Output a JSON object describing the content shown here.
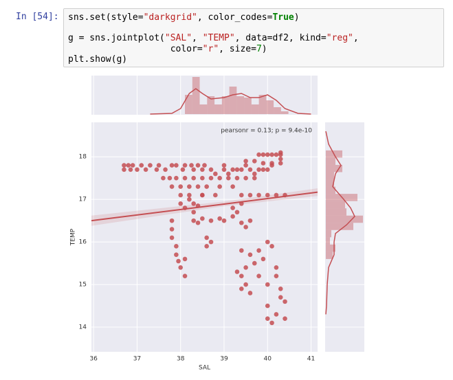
{
  "prompt": "In [54]:",
  "code": [
    [
      "sns.set(style=",
      "\"darkgrid\"",
      ", color_codes=",
      "True",
      ")"
    ],
    [
      "g = sns.jointplot(",
      "\"SAL\"",
      ", ",
      "\"TEMP\"",
      ", data=df2, kind=",
      "\"reg\"",
      ","
    ],
    [
      "                   color=",
      "\"r\"",
      ", size=",
      "7",
      ")"
    ],
    [
      "plt.show(g)"
    ]
  ],
  "chart_data": {
    "type": "scatter",
    "x_label": "SAL",
    "y_label": "TEMP",
    "annotation": "pearsonr = 0.13; p = 9.4e-10",
    "color": "#c44e52",
    "grid": true,
    "xlim": [
      35.95,
      41.15
    ],
    "ylim": [
      13.42,
      18.81
    ],
    "xticks": [
      36,
      37,
      38,
      39,
      40,
      41
    ],
    "yticks": [
      14,
      15,
      16,
      17,
      18
    ],
    "x": [
      36.7,
      36.8,
      36.9,
      37.1,
      37.3,
      37.5,
      37.8,
      37.9,
      38.1,
      38.25,
      38.4,
      38.55,
      36.7,
      36.85,
      37.0,
      37.2,
      37.45,
      37.65,
      38.05,
      38.3,
      38.5,
      38.7,
      39.0,
      39.2,
      39.4,
      39.6,
      39.8,
      40.0,
      37.6,
      37.75,
      37.9,
      38.1,
      38.3,
      38.5,
      38.7,
      38.9,
      39.1,
      39.3,
      39.5,
      39.7,
      37.8,
      38.0,
      38.2,
      38.4,
      38.6,
      38.9,
      39.2,
      38.0,
      38.2,
      38.5,
      38.8,
      39.4,
      39.6,
      39.8,
      40.0,
      40.2,
      40.4,
      39.8,
      39.9,
      40.0,
      40.1,
      40.2,
      40.3,
      39.5,
      39.7,
      39.9,
      40.1,
      40.3,
      38.0,
      38.1,
      38.2,
      38.3,
      38.4,
      38.3,
      38.4,
      38.5,
      38.7,
      38.9,
      39.0,
      39.2,
      39.4,
      39.6,
      37.8,
      37.8,
      37.8,
      37.9,
      37.9,
      38.1,
      38.1,
      38.0,
      37.95,
      39.3,
      39.5,
      39.2,
      39.4,
      39.4,
      39.6,
      39.8,
      39.9,
      40.0,
      40.1,
      39.7,
      39.5,
      39.3,
      39.4,
      39.5,
      39.4,
      39.6,
      39.8,
      40.0,
      40.2,
      40.2,
      40.3,
      40.3,
      40.4,
      40.0,
      40.2,
      40.0,
      40.1,
      40.4,
      38.6,
      38.7,
      38.6,
      38.3,
      38.5,
      38.8,
      39.0,
      39.1,
      39.3,
      39.5,
      39.7,
      39.9,
      40.1,
      40.3,
      40.3
    ],
    "y": [
      17.8,
      17.8,
      17.8,
      17.8,
      17.8,
      17.8,
      17.8,
      17.8,
      17.8,
      17.8,
      17.8,
      17.8,
      17.7,
      17.7,
      17.7,
      17.7,
      17.7,
      17.7,
      17.7,
      17.7,
      17.7,
      17.7,
      17.7,
      17.7,
      17.7,
      17.7,
      17.7,
      17.7,
      17.5,
      17.5,
      17.5,
      17.5,
      17.5,
      17.5,
      17.5,
      17.5,
      17.5,
      17.5,
      17.5,
      17.5,
      17.3,
      17.3,
      17.3,
      17.3,
      17.3,
      17.3,
      17.3,
      17.1,
      17.1,
      17.1,
      17.1,
      17.1,
      17.1,
      17.1,
      17.1,
      17.1,
      17.1,
      18.05,
      18.05,
      18.05,
      18.05,
      18.05,
      18.05,
      17.9,
      17.9,
      17.85,
      17.85,
      17.85,
      16.9,
      16.8,
      17.0,
      16.7,
      16.85,
      16.5,
      16.45,
      16.55,
      16.5,
      16.55,
      16.5,
      16.6,
      16.45,
      16.5,
      16.5,
      16.3,
      16.1,
      15.9,
      15.7,
      15.6,
      15.2,
      15.4,
      15.55,
      16.7,
      16.35,
      16.8,
      16.9,
      15.8,
      15.7,
      15.8,
      15.6,
      16.0,
      15.9,
      15.5,
      15.4,
      15.3,
      15.2,
      15.0,
      14.9,
      14.8,
      15.2,
      15.0,
      15.4,
      15.2,
      14.9,
      14.7,
      14.6,
      14.5,
      14.3,
      14.2,
      14.1,
      14.2,
      16.1,
      16.0,
      15.9,
      16.9,
      17.1,
      17.6,
      17.8,
      17.6,
      17.7,
      17.8,
      17.6,
      17.7,
      17.8,
      17.95,
      18.1
    ],
    "regression": {
      "x": [
        35.95,
        39,
        41.15
      ],
      "y": [
        16.5,
        16.89,
        17.17
      ],
      "ci_lower": [
        16.38,
        16.84,
        17.08
      ],
      "ci_upper": [
        16.62,
        16.95,
        17.26
      ]
    },
    "x_marginal": {
      "bins": [
        38.1,
        38.27,
        38.44,
        38.61,
        38.78,
        38.95,
        39.12,
        39.29,
        39.46,
        39.63,
        39.8,
        39.97,
        40.14,
        40.31,
        40.48
      ],
      "counts": [
        28,
        54,
        14,
        26,
        14,
        26,
        40,
        26,
        24,
        14,
        28,
        20,
        10,
        4
      ],
      "kde_x": [
        37.3,
        37.8,
        38.0,
        38.2,
        38.35,
        38.5,
        38.7,
        39.0,
        39.2,
        39.4,
        39.6,
        39.8,
        40.0,
        40.2,
        40.4,
        40.7,
        41.0
      ],
      "kde_y": [
        0,
        1,
        8,
        30,
        37,
        30,
        22,
        24,
        28,
        30,
        24,
        24,
        28,
        20,
        8,
        1,
        0
      ]
    },
    "y_marginal": {
      "bins": [
        15.6,
        15.77,
        15.94,
        16.11,
        16.28,
        16.45,
        16.62,
        16.79,
        16.96,
        17.13,
        17.3,
        17.47,
        17.64,
        17.81,
        17.98,
        18.15
      ],
      "counts": [
        10,
        14,
        6,
        8,
        40,
        54,
        30,
        28,
        46,
        14,
        12,
        12,
        24,
        14,
        24
      ],
      "kde_y": [
        18.6,
        18.3,
        18.0,
        17.8,
        17.6,
        17.3,
        17.0,
        16.8,
        16.6,
        16.4,
        16.2,
        16.0,
        15.7,
        15.4,
        15.0,
        14.5,
        14.3
      ],
      "kde_x": [
        0,
        4,
        14,
        22,
        14,
        10,
        26,
        36,
        42,
        30,
        14,
        12,
        12,
        4,
        2,
        1,
        0
      ]
    }
  }
}
